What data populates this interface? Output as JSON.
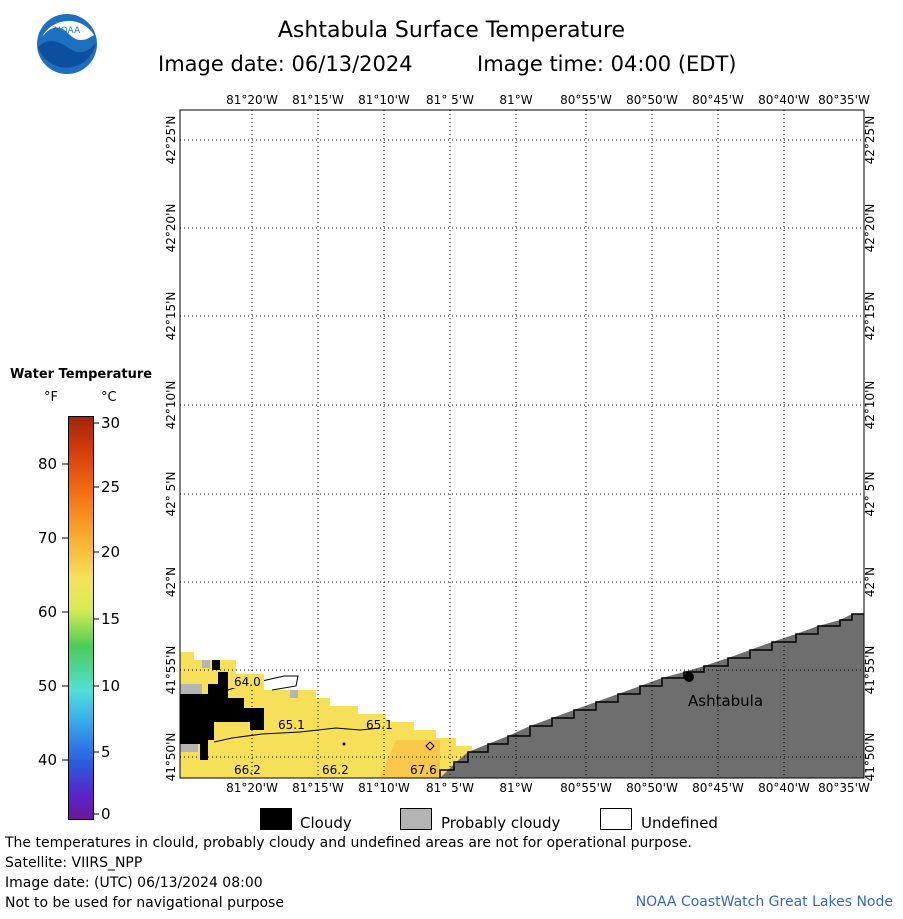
{
  "header": {
    "title": "Ashtabula Surface Temperature",
    "image_date": "Image date: 06/13/2024",
    "image_time": "Image time: 04:00 (EDT)",
    "logo_text": "NOAA"
  },
  "map": {
    "lon_ticks": [
      "81°20'W",
      "81°15'W",
      "81°10'W",
      "81° 5'W",
      "81°W",
      "80°55'W",
      "80°50'W",
      "80°45'W",
      "80°40'W",
      "80°35'W"
    ],
    "lat_ticks": [
      "42°25'N",
      "42°20'N",
      "42°15'N",
      "42°10'N",
      "42° 5'N",
      "42°N",
      "41°55'N",
      "41°50'N"
    ],
    "contour_labels": [
      "64.0",
      "65.1",
      "65.1",
      "66.2",
      "66.2",
      "67.6"
    ],
    "city": "Ashtabula",
    "colors": {
      "land": "#6e6e6e",
      "water_warm": "#f6e05a",
      "cloudy": "#000000",
      "probably_cloudy": "#b4b4b4",
      "undefined": "#ffffff"
    }
  },
  "legend": {
    "title": "Water Temperature",
    "unit_f": "°F",
    "unit_c": "°C",
    "fahrenheit_labels": [
      "80",
      "70",
      "60",
      "50",
      "40"
    ],
    "celsius_labels": [
      "30",
      "25",
      "20",
      "15",
      "10",
      "5",
      "0"
    ]
  },
  "key": {
    "cloudy": "Cloudy",
    "probably_cloudy": "Probably cloudy",
    "undefined": "Undefined"
  },
  "footer": {
    "note": "The temperatures in clould, probably cloudy and undefined areas are not for operational purpose.",
    "satellite": "Satellite: VIIRS_NPP",
    "utc_date": "Image date: (UTC) 06/13/2024  08:00",
    "nav": "Not to be used for navigational purpose",
    "credit": "NOAA CoastWatch Great Lakes Node"
  }
}
